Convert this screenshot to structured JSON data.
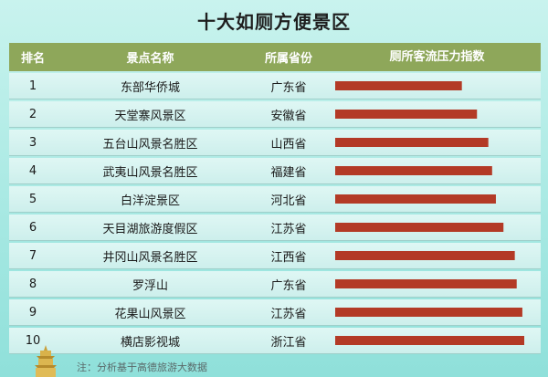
{
  "title": "十大如厕方便景区",
  "headers": {
    "rank": "排名",
    "name": "景点名称",
    "province": "所属省份",
    "pressure": "厕所客流压力指数"
  },
  "footnote": "注：分析基于高德旅游大数据",
  "bar_color": "#b33a26",
  "chart_data": {
    "type": "bar",
    "orientation": "horizontal",
    "title": "十大如厕方便景区",
    "columns": [
      "排名",
      "景点名称",
      "所属省份",
      "厕所客流压力指数"
    ],
    "rows": [
      {
        "rank": "1",
        "name": "东部华侨城",
        "province": "广东省",
        "value": 67
      },
      {
        "rank": "2",
        "name": "天堂寨风景区",
        "province": "安徽省",
        "value": 75
      },
      {
        "rank": "3",
        "name": "五台山风景名胜区",
        "province": "山西省",
        "value": 81
      },
      {
        "rank": "4",
        "name": "武夷山风景名胜区",
        "province": "福建省",
        "value": 83
      },
      {
        "rank": "5",
        "name": "白洋淀景区",
        "province": "河北省",
        "value": 85
      },
      {
        "rank": "6",
        "name": "天目湖旅游度假区",
        "province": "江苏省",
        "value": 89
      },
      {
        "rank": "7",
        "name": "井冈山风景名胜区",
        "province": "江西省",
        "value": 95
      },
      {
        "rank": "8",
        "name": "罗浮山",
        "province": "广东省",
        "value": 96
      },
      {
        "rank": "9",
        "name": "花果山风景区",
        "province": "江苏省",
        "value": 99
      },
      {
        "rank": "10",
        "name": "横店影视城",
        "province": "浙江省",
        "value": 100
      }
    ],
    "value_axis": {
      "min": 0,
      "max": 100,
      "shown": false
    },
    "grid": false,
    "legend": "none"
  }
}
